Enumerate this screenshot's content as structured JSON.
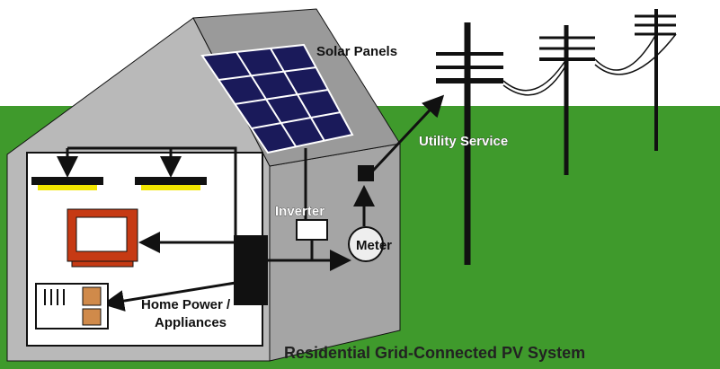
{
  "title": "Residential Grid-Connected PV System",
  "labels": {
    "solar_panels": "Solar Panels",
    "utility_service": "Utility Service",
    "inverter": "Inverter",
    "meter": "Meter",
    "home_power": [
      "Home Power /",
      "Appliances"
    ]
  }
}
